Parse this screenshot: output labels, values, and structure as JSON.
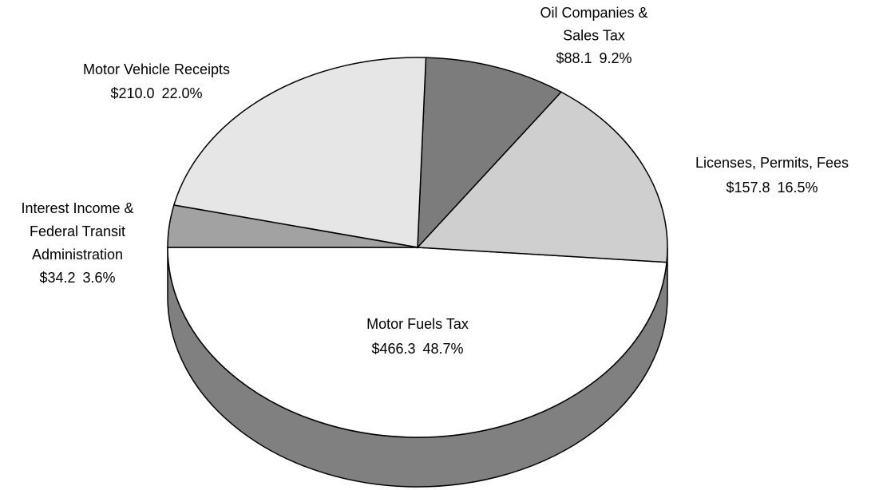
{
  "chart_data": {
    "type": "pie",
    "categories": [
      [
        "Motor Fuels Tax"
      ],
      [
        "Licenses, Permits, Fees"
      ],
      [
        "Oil Companies &",
        "Sales Tax"
      ],
      [
        "Motor Vehicle Receipts"
      ],
      [
        "Interest Income &",
        "Federal Transit",
        "Administration"
      ]
    ],
    "values": [
      466.3,
      157.8,
      88.1,
      210.0,
      34.2
    ],
    "value_labels": [
      "$466.3",
      "$157.8",
      "$88.1",
      "$210.0",
      "$34.2"
    ],
    "percents": [
      48.7,
      16.5,
      9.2,
      22.0,
      3.6
    ],
    "percent_labels": [
      "48.7%",
      "16.5%",
      "9.2%",
      "22.0%",
      "3.6%"
    ],
    "colors": [
      "#ffffff",
      "#cfcfcf",
      "#7c7c7c",
      "#e6e6e6",
      "#a2a2a2"
    ],
    "side_color": "#808080"
  }
}
